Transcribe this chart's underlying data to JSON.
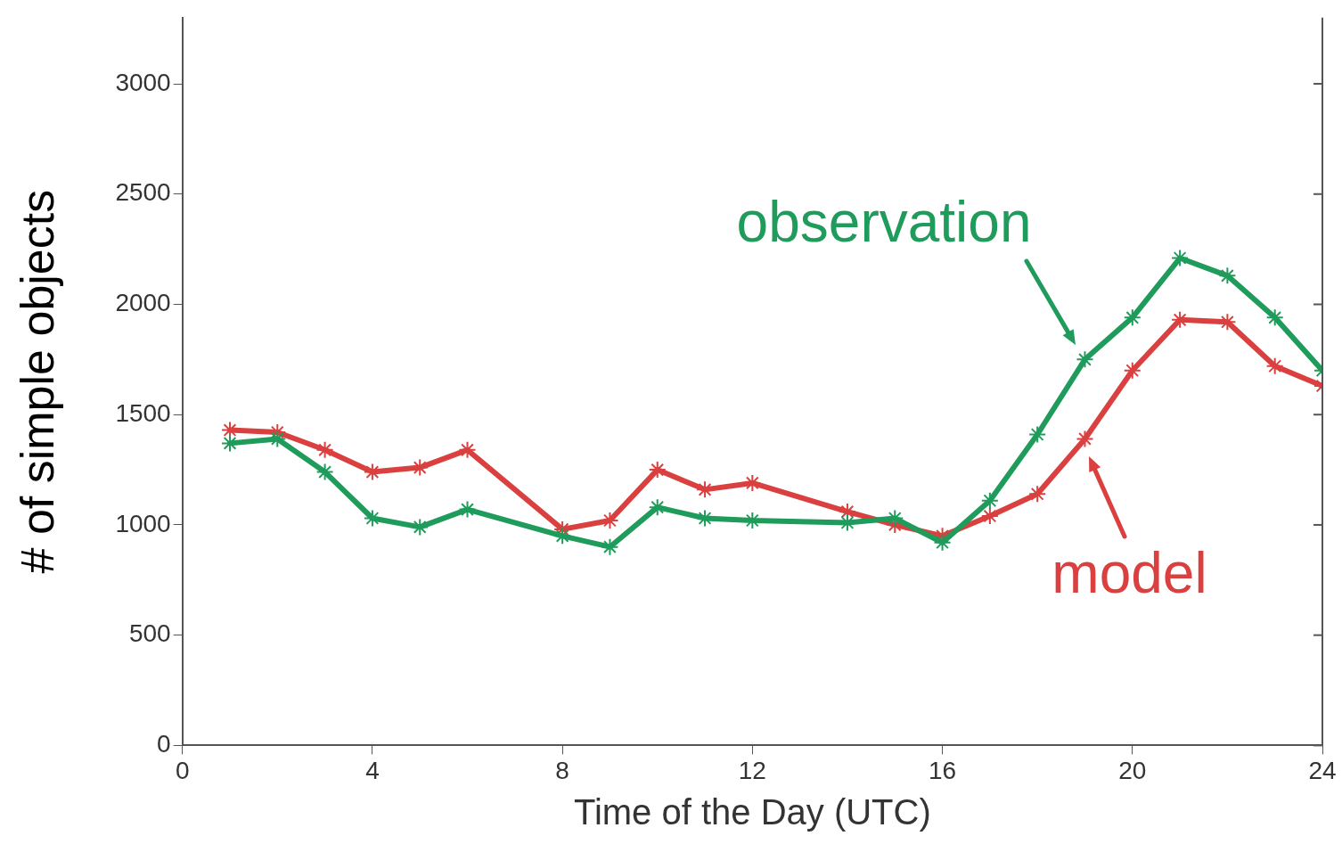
{
  "chart_data": {
    "type": "line",
    "xlabel": "Time of the Day (UTC)",
    "ylabel": "# of simple objects",
    "xlim": [
      0,
      24
    ],
    "xticks": [
      0,
      4,
      8,
      12,
      16,
      20,
      24
    ],
    "ylim": [
      0,
      3300
    ],
    "yticks": [
      0,
      500,
      1000,
      1500,
      2000,
      2500,
      3000
    ],
    "grid": false,
    "marker": "cross",
    "line_style": "solid",
    "series": [
      {
        "name": "observation",
        "color": "#1f9b5c",
        "x": [
          1,
          2,
          3,
          4,
          5,
          6,
          8,
          9,
          10,
          11,
          12,
          14,
          15,
          16,
          17,
          18,
          19,
          20,
          21,
          22,
          23,
          24
        ],
        "values": [
          1370,
          1390,
          1240,
          1030,
          990,
          1070,
          950,
          900,
          1080,
          1030,
          1020,
          1010,
          1030,
          920,
          1110,
          1410,
          1750,
          1940,
          2210,
          2130,
          1940,
          1700
        ]
      },
      {
        "name": "model",
        "color": "#d9403f",
        "x": [
          1,
          2,
          3,
          4,
          5,
          6,
          8,
          9,
          10,
          11,
          12,
          14,
          15,
          16,
          17,
          18,
          19,
          20,
          21,
          22,
          23,
          24
        ],
        "values": [
          1430,
          1420,
          1340,
          1240,
          1260,
          1340,
          980,
          1020,
          1250,
          1160,
          1190,
          1060,
          1000,
          950,
          1040,
          1140,
          1390,
          1700,
          1930,
          1920,
          1720,
          1630
        ]
      }
    ]
  }
}
